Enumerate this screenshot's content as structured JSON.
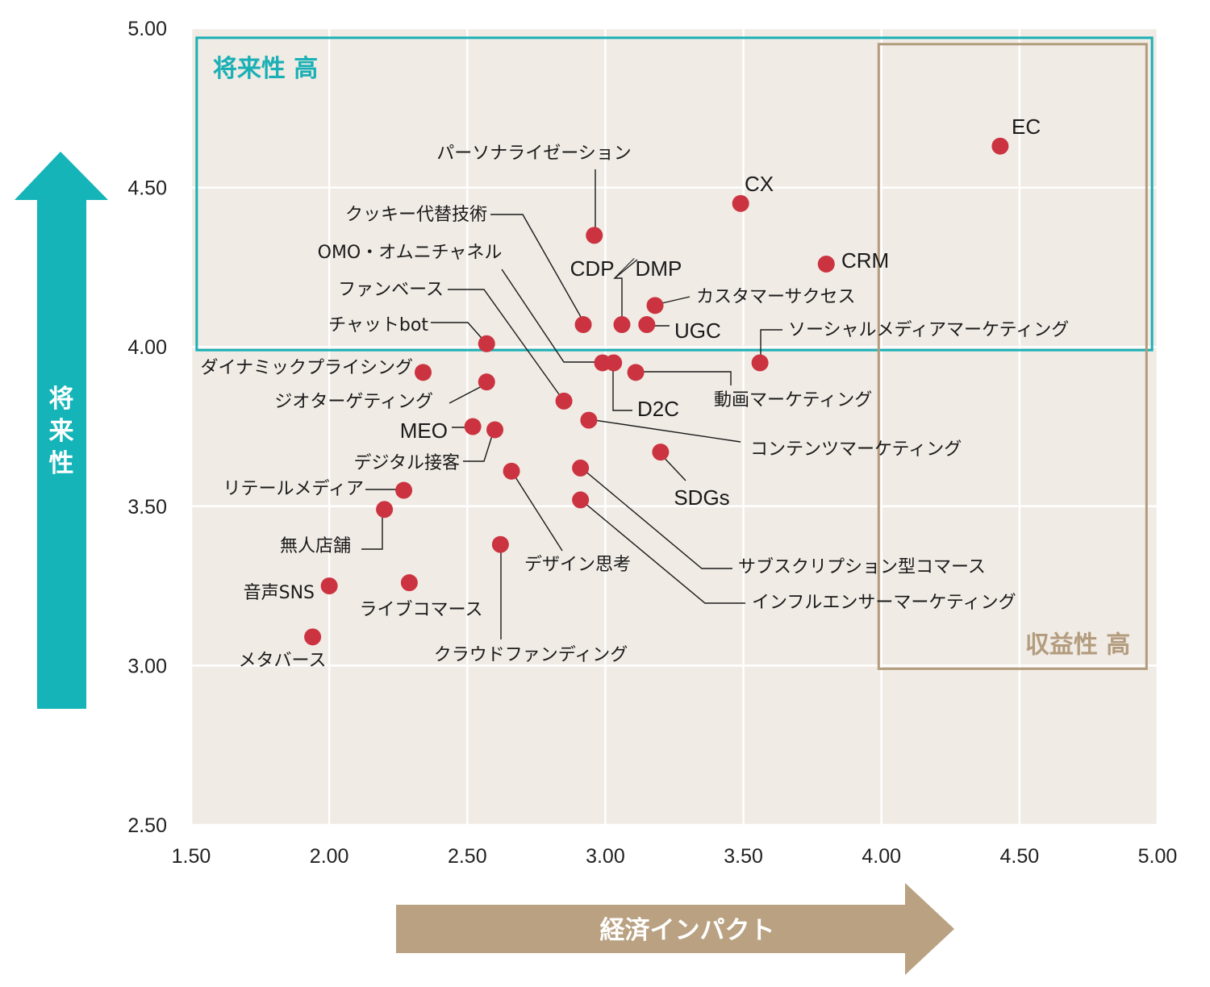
{
  "chart_data": {
    "type": "scatter",
    "xlabel": "経済インパクト",
    "ylabel": "将来性",
    "xlim": [
      1.5,
      5.0
    ],
    "ylim": [
      2.5,
      5.0
    ],
    "x_ticks": [
      "1.50",
      "2.00",
      "2.50",
      "3.00",
      "3.50",
      "4.00",
      "4.50",
      "5.00"
    ],
    "y_ticks": [
      "2.50",
      "3.00",
      "3.50",
      "4.00",
      "4.50",
      "5.00"
    ],
    "grid": true,
    "zones": [
      {
        "label": "将来性 高",
        "color": "#1ab0b5",
        "x": [
          1.52,
          4.98
        ],
        "y": [
          3.99,
          4.97
        ]
      },
      {
        "label": "収益性 高",
        "color": "#b39c7e",
        "x": [
          3.99,
          4.96
        ],
        "y": [
          2.99,
          4.95
        ]
      }
    ],
    "points": [
      {
        "name": "EC",
        "x": 4.43,
        "y": 4.63
      },
      {
        "name": "CX",
        "x": 3.49,
        "y": 4.45
      },
      {
        "name": "CRM",
        "x": 3.8,
        "y": 4.26
      },
      {
        "name": "パーソナライゼーション",
        "x": 2.96,
        "y": 4.35
      },
      {
        "name": "クッキー代替技術",
        "x": 2.92,
        "y": 4.07
      },
      {
        "name": "CDP／DMP",
        "x": 3.06,
        "y": 4.07
      },
      {
        "name": "カスタマーサクセス",
        "x": 3.18,
        "y": 4.13
      },
      {
        "name": "UGC",
        "x": 3.15,
        "y": 4.07
      },
      {
        "name": "ソーシャルメディアマーケティング",
        "x": 3.56,
        "y": 3.95
      },
      {
        "name": "OMO・オムニチャネル",
        "x": 2.99,
        "y": 3.95
      },
      {
        "name": "D2C",
        "x": 3.03,
        "y": 3.95
      },
      {
        "name": "動画マーケティング",
        "x": 3.11,
        "y": 3.92
      },
      {
        "name": "ファンベース",
        "x": 2.85,
        "y": 3.83
      },
      {
        "name": "チャットbot",
        "x": 2.57,
        "y": 4.01
      },
      {
        "name": "ダイナミックプライシング",
        "x": 2.34,
        "y": 3.92
      },
      {
        "name": "ジオターゲティング",
        "x": 2.57,
        "y": 3.89
      },
      {
        "name": "MEO",
        "x": 2.52,
        "y": 3.75
      },
      {
        "name": "デジタル接客",
        "x": 2.6,
        "y": 3.74
      },
      {
        "name": "コンテンツマーケティング",
        "x": 2.94,
        "y": 3.77
      },
      {
        "name": "SDGs",
        "x": 3.2,
        "y": 3.67
      },
      {
        "name": "リテールメディア",
        "x": 2.27,
        "y": 3.55
      },
      {
        "name": "無人店舗",
        "x": 2.2,
        "y": 3.49
      },
      {
        "name": "デザイン思考",
        "x": 2.66,
        "y": 3.61
      },
      {
        "name": "サブスクリプション型コマース",
        "x": 2.91,
        "y": 3.62
      },
      {
        "name": "インフルエンサーマーケティング",
        "x": 2.91,
        "y": 3.52
      },
      {
        "name": "クラウドファンディング",
        "x": 2.62,
        "y": 3.38
      },
      {
        "name": "音声SNS",
        "x": 2.0,
        "y": 3.25
      },
      {
        "name": "ライブコマース",
        "x": 2.29,
        "y": 3.26
      },
      {
        "name": "メタバース",
        "x": 1.94,
        "y": 3.09
      }
    ],
    "point_color": "#cc3340"
  }
}
